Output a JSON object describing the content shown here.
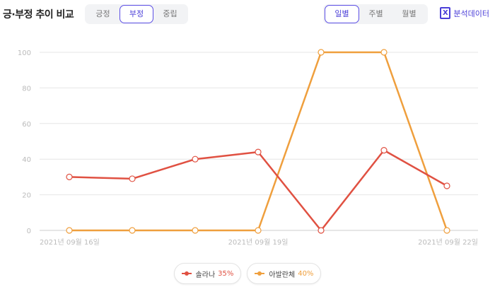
{
  "header": {
    "title": "긍·부정 추이 비교",
    "export_label": "분석데이터"
  },
  "sentiment_tabs": [
    {
      "label": "긍정",
      "active": false
    },
    {
      "label": "부정",
      "active": true
    },
    {
      "label": "중립",
      "active": false
    }
  ],
  "period_tabs": [
    {
      "label": "일별",
      "active": true
    },
    {
      "label": "주별",
      "active": false
    },
    {
      "label": "월별",
      "active": false
    }
  ],
  "icons": {
    "export": "excel-file-icon"
  },
  "colors": {
    "accent": "#4b3fd8",
    "series1": "#e05142",
    "series2": "#ef9f3d",
    "grid": "#e6e6e6",
    "tick": "#bbbbbb"
  },
  "chart_data": {
    "type": "line",
    "x": [
      "2021-09-16",
      "2021-09-17",
      "2021-09-18",
      "2021-09-19",
      "2021-09-20",
      "2021-09-21",
      "2021-09-22"
    ],
    "x_tick_labels": [
      {
        "index": 0,
        "label": "2021년 09월 16일"
      },
      {
        "index": 3,
        "label": "2021년 09월 19일"
      },
      {
        "index": 6,
        "label": "2021년 09월 22일"
      }
    ],
    "ylim": [
      0,
      100
    ],
    "yticks": [
      0,
      20,
      40,
      60,
      80,
      100
    ],
    "grid": true,
    "series": [
      {
        "name": "솔라나",
        "percent": "35%",
        "color": "#e05142",
        "values": [
          30,
          29,
          40,
          44,
          0,
          45,
          25
        ]
      },
      {
        "name": "아발란체",
        "percent": "40%",
        "color": "#ef9f3d",
        "values": [
          0,
          0,
          0,
          0,
          100,
          100,
          0
        ]
      }
    ],
    "legend_position": "bottom-center"
  }
}
